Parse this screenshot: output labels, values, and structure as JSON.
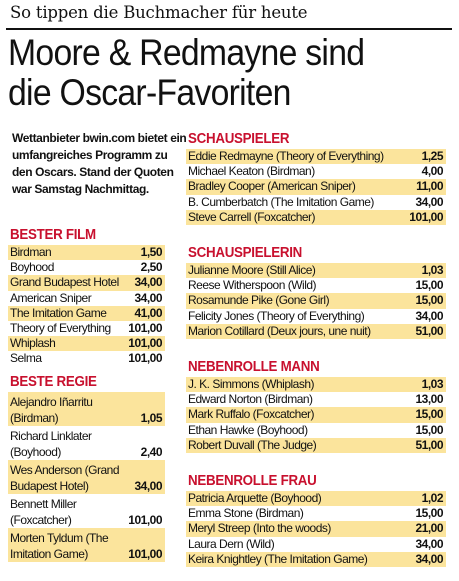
{
  "kicker": "So tippen die Buchmacher für heute",
  "headline": {
    "line1": "Moore & Redmayne sind",
    "line2": "die Oscar-Favoriten"
  },
  "intro": "Wettanbieter bwin.com bietet ein umfangreiches Programm zu den Oscars. Stand der Quoten war Samstag Nachmittag.",
  "sections": {
    "bester_film": {
      "title": "BESTER FILM",
      "rows": [
        {
          "name": "Birdman",
          "odds": "1,50"
        },
        {
          "name": "Boyhood",
          "odds": "2,50"
        },
        {
          "name": "Grand Budapest Hotel",
          "odds": "34,00"
        },
        {
          "name": "American Sniper",
          "odds": "34,00"
        },
        {
          "name": "The Imitation Game",
          "odds": "41,00"
        },
        {
          "name": "Theory of Everything",
          "odds": "101,00"
        },
        {
          "name": "Whiplash",
          "odds": "101,00"
        },
        {
          "name": "Selma",
          "odds": "101,00"
        }
      ]
    },
    "beste_regie": {
      "title": "BESTE REGIE",
      "rows": [
        {
          "name": "Alejandro Iñarritu (Birdman)",
          "odds": "1,05"
        },
        {
          "name": "Richard Linklater (Boyhood)",
          "odds": "2,40"
        },
        {
          "name": "Wes Anderson (Grand Budapest Hotel)",
          "odds": "34,00"
        },
        {
          "name": "Bennett Miller (Foxcatcher)",
          "odds": "101,00"
        },
        {
          "name": "Morten Tyldum (The Imitation Game)",
          "odds": "101,00"
        }
      ]
    },
    "schauspieler": {
      "title": "SCHAUSPIELER",
      "rows": [
        {
          "name": "Eddie Redmayne (Theory of Everything)",
          "odds": "1,25"
        },
        {
          "name": "Michael Keaton (Birdman)",
          "odds": "4,00"
        },
        {
          "name": "Bradley Cooper (American Sniper)",
          "odds": "11,00"
        },
        {
          "name": "B. Cumberbatch (The Imitation Game)",
          "odds": "34,00"
        },
        {
          "name": "Steve Carrell (Foxcatcher)",
          "odds": "101,00"
        }
      ]
    },
    "schauspielerin": {
      "title": "SCHAUSPIELERIN",
      "rows": [
        {
          "name": "Julianne Moore (Still Alice)",
          "odds": "1,03"
        },
        {
          "name": "Reese Witherspoon (Wild)",
          "odds": "15,00"
        },
        {
          "name": "Rosamunde Pike (Gone Girl)",
          "odds": "15,00"
        },
        {
          "name": "Felicity Jones (Theory of Everything)",
          "odds": "34,00"
        },
        {
          "name": "Marion Cotillard (Deux jours, une nuit)",
          "odds": "51,00"
        }
      ]
    },
    "nebenrolle_mann": {
      "title": "NEBENROLLE MANN",
      "rows": [
        {
          "name": "J. K. Simmons (Whiplash)",
          "odds": "1,03"
        },
        {
          "name": "Edward Norton (Birdman)",
          "odds": "13,00"
        },
        {
          "name": "Mark Ruffalo (Foxcatcher)",
          "odds": "15,00"
        },
        {
          "name": "Ethan Hawke (Boyhood)",
          "odds": "15,00"
        },
        {
          "name": "Robert Duvall (The Judge)",
          "odds": "51,00"
        }
      ]
    },
    "nebenrolle_frau": {
      "title": "NEBENROLLE FRAU",
      "rows": [
        {
          "name": "Patricia Arquette (Boyhood)",
          "odds": "1,02"
        },
        {
          "name": "Emma Stone (Birdman)",
          "odds": "15,00"
        },
        {
          "name": "Meryl Streep (Into the woods)",
          "odds": "21,00"
        },
        {
          "name": "Laura Dern (Wild)",
          "odds": "34,00"
        },
        {
          "name": "Keira Knightley (The Imitation Game)",
          "odds": "34,00"
        }
      ]
    }
  },
  "colors": {
    "section_title": "#c8102e",
    "row_shade": "#fbe49c",
    "text": "#111111"
  }
}
